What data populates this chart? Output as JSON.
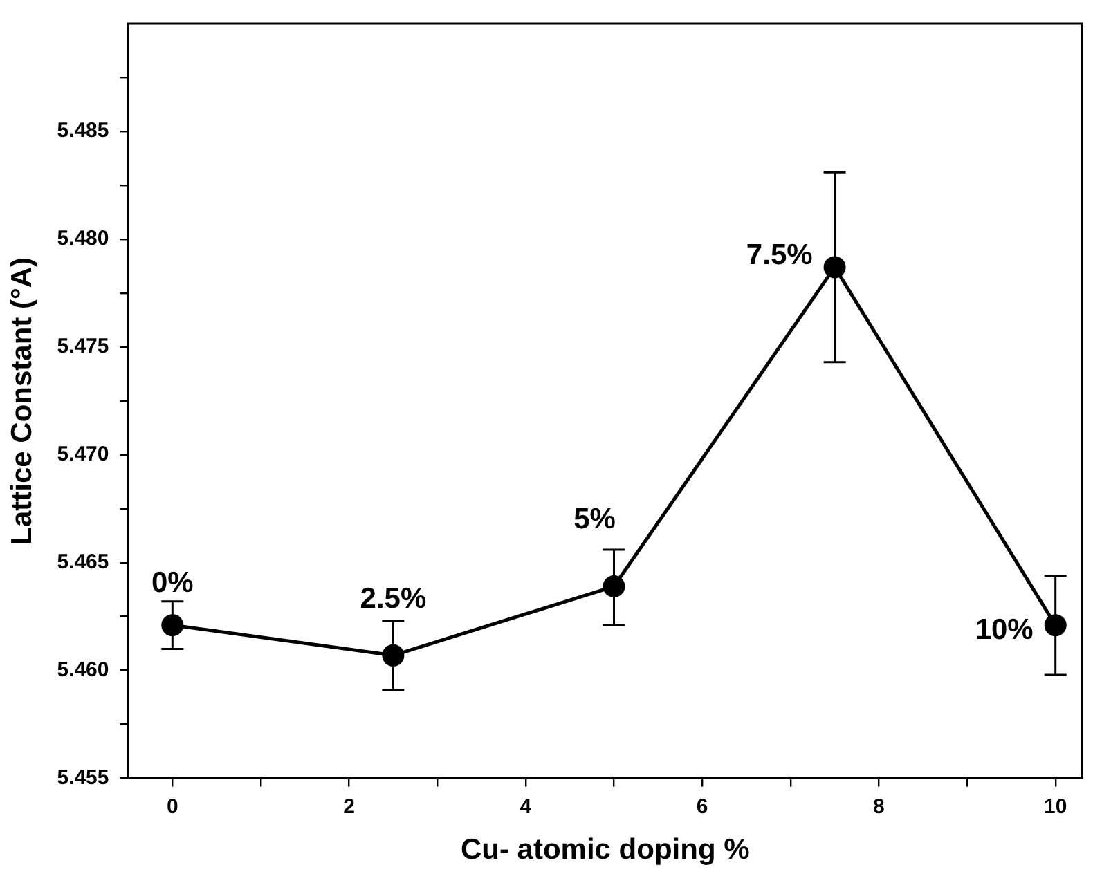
{
  "chart_data": {
    "type": "line",
    "xlabel": "Cu- atomic doping %",
    "ylabel": "Lattice Constant (°A)",
    "x": [
      0,
      2.5,
      5,
      7.5,
      10
    ],
    "series": [
      {
        "color": "#000000",
        "values": [
          5.4621,
          5.4607,
          5.4639,
          5.4787,
          5.4621
        ],
        "errors": [
          [
            5.461,
            5.4632
          ],
          [
            5.4591,
            5.4623
          ],
          [
            5.4621,
            5.4656
          ],
          [
            5.4743,
            5.4831
          ],
          [
            5.4598,
            5.4644
          ]
        ]
      }
    ],
    "xlim": [
      -0.5,
      10.3
    ],
    "xticks": [
      0,
      {
        "value": 1,
        "label": null
      },
      2,
      {
        "value": 3,
        "label": null
      },
      4,
      {
        "value": 5,
        "label": null
      },
      6,
      {
        "value": 7,
        "label": null
      },
      8,
      {
        "value": 9,
        "label": null
      },
      10
    ],
    "ylim": [
      5.455,
      5.49
    ],
    "yticks": [
      5.455,
      {
        "value": 5.4575,
        "label": null
      },
      {
        "value": 5.46,
        "label": "5.460"
      },
      {
        "value": 5.4625,
        "label": null
      },
      5.465,
      {
        "value": 5.4675,
        "label": null
      },
      {
        "value": 5.47,
        "label": "5.470"
      },
      {
        "value": 5.4725,
        "label": null
      },
      5.475,
      {
        "value": 5.4775,
        "label": null
      },
      {
        "value": 5.48,
        "label": "5.480"
      },
      {
        "value": 5.4825,
        "label": null
      },
      5.485,
      {
        "value": 5.4875,
        "label": null
      }
    ],
    "annotations": [
      {
        "text": "0%",
        "x": 0,
        "y": 5.4621
      },
      {
        "text": "2.5%",
        "x": 2.5,
        "y": 5.4607
      },
      {
        "text": "5%",
        "x": 5,
        "y": 5.4639
      },
      {
        "text": "7.5%",
        "x": 7.5,
        "y": 5.4787
      },
      {
        "text": "10%",
        "x": 10,
        "y": 5.4621
      }
    ],
    "marker": "circle",
    "line_style": "solid",
    "grid": false,
    "legend": false
  }
}
